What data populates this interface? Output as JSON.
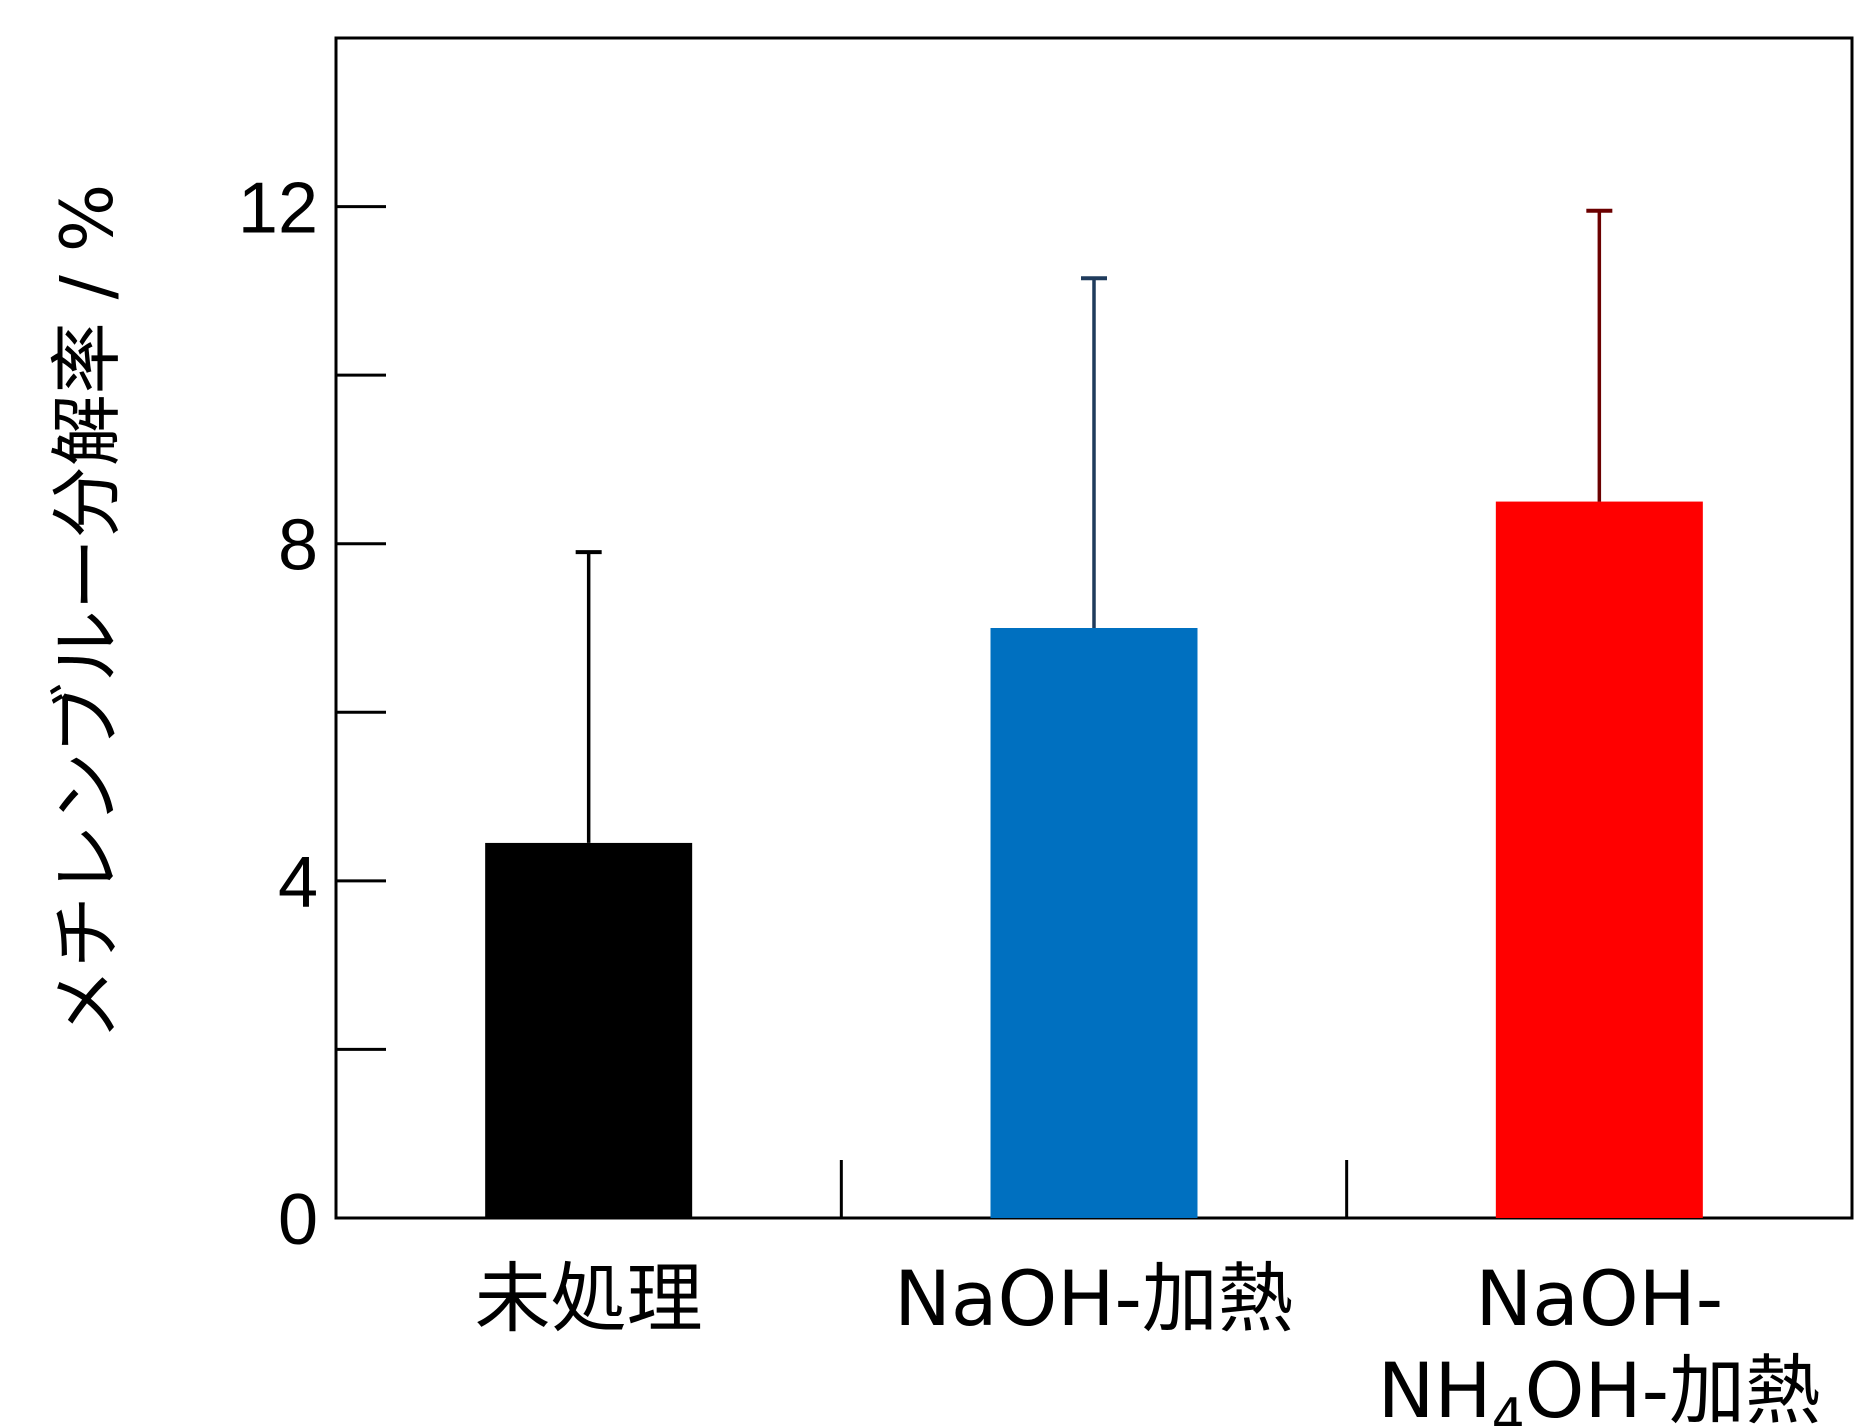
{
  "chart_data": {
    "type": "bar",
    "title": "",
    "xlabel": "",
    "ylabel": "メチレンブルー分解率 / %",
    "ylim": [
      0,
      14
    ],
    "yticks_labeled": [
      0,
      4,
      8,
      12
    ],
    "yticks_minor": [
      2,
      6,
      10
    ],
    "grid": false,
    "categories": [
      "未処理",
      "NaOH-加熱",
      "NaOH-NH4OH-加熱"
    ],
    "category_label_lines": [
      [
        {
          "text": "未処理"
        }
      ],
      [
        {
          "text": "NaOH-加熱"
        }
      ],
      [
        {
          "text": "NaOH-"
        },
        {
          "text": "NH",
          "sub": "4",
          "rest": "OH-加熱"
        }
      ]
    ],
    "values": [
      4.45,
      7.0,
      8.5
    ],
    "error_upper": [
      7.9,
      11.15,
      11.95
    ],
    "colors": [
      "#000000",
      "#0070C0",
      "#FF0000"
    ],
    "error_colors": [
      "#000000",
      "#1f3b5c",
      "#6b0000"
    ]
  }
}
